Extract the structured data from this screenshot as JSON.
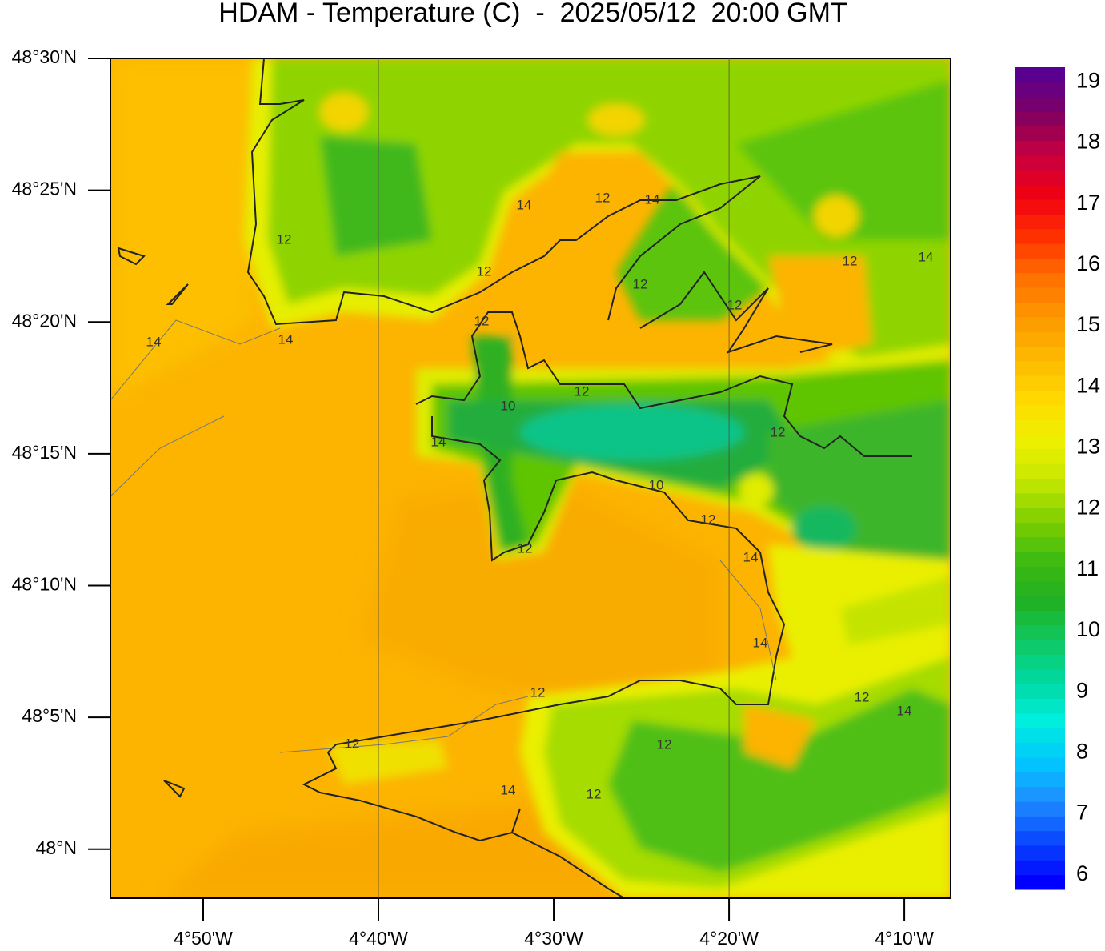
{
  "title": "HDAM - Temperature (C)  -  2025/05/12  20:00 GMT",
  "lat_range": [
    47.969,
    48.5
  ],
  "lat_ticks": [
    {
      "value": 48.5,
      "label": "48°30'N"
    },
    {
      "value": 48.41667,
      "label": "48°25'N"
    },
    {
      "value": 48.33333,
      "label": "48°20'N"
    },
    {
      "value": 48.25,
      "label": "48°15'N"
    },
    {
      "value": 48.16667,
      "label": "48°10'N"
    },
    {
      "value": 48.08333,
      "label": "48°5'N"
    },
    {
      "value": 48,
      "label": "48°N"
    }
  ],
  "lon_range": [
    -4.9216,
    -4.1226
  ],
  "lon_ticks": [
    {
      "value": -4.83333,
      "label": "4°50'W"
    },
    {
      "value": -4.66667,
      "label": "4°40'W"
    },
    {
      "value": -4.5,
      "label": "4°30'W"
    },
    {
      "value": -4.33333,
      "label": "4°20'W"
    },
    {
      "value": -4.16667,
      "label": "4°10'W"
    }
  ],
  "colorbar": {
    "range": [
      5.76,
      19.24
    ],
    "ticks": [
      6,
      7,
      8,
      9,
      10,
      11,
      12,
      13,
      14,
      15,
      16,
      17,
      18,
      19
    ]
  },
  "contour_labels": [
    14,
    14,
    12,
    14,
    12,
    12,
    14,
    12,
    12,
    12,
    14,
    12,
    10,
    12,
    10,
    12,
    14,
    14,
    12,
    14,
    12,
    12,
    14,
    12,
    12,
    14,
    12,
    12
  ]
}
